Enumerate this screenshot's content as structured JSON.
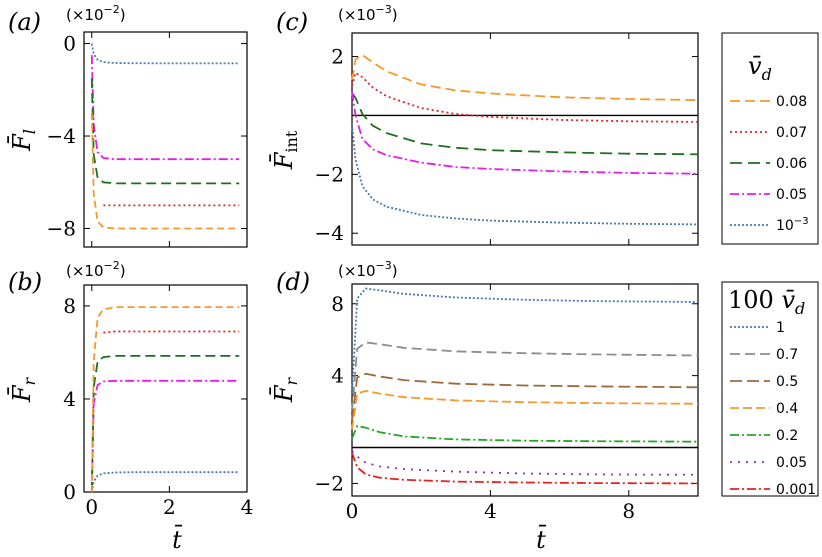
{
  "chart_data": [
    {
      "panel": "(a)",
      "type": "line",
      "ylabel": "F̄_l",
      "xlabel": "",
      "scale_note": "(×10",
      "scale_exp": "−2",
      "xlim": [
        -0.2,
        4
      ],
      "ylim": [
        -8.8,
        0.5
      ],
      "xticks": [
        0,
        2,
        4
      ],
      "xticklabels": [
        "",
        "",
        ""
      ],
      "yticks": [
        0,
        -4,
        -8
      ],
      "yticklabels": [
        "0",
        "−4",
        "−8"
      ],
      "series": [
        {
          "name": "10^-3",
          "color": "#4c78b5",
          "dash": "2,2",
          "x": [
            0.0,
            0.05,
            0.15,
            0.3,
            0.6,
            1.0,
            2.0,
            3.0,
            3.8
          ],
          "y": [
            0.0,
            -0.45,
            -0.7,
            -0.8,
            -0.84,
            -0.85,
            -0.86,
            -0.86,
            -0.86
          ]
        },
        {
          "name": "0.05",
          "color": "#e61aeb",
          "dash": "9,3,2,3",
          "x": [
            0.0,
            0.05,
            0.15,
            0.3,
            0.6,
            1.0,
            2.0,
            3.0,
            3.8
          ],
          "y": [
            -0.5,
            -3.5,
            -4.7,
            -4.95,
            -5.0,
            -5.0,
            -5.0,
            -5.0,
            -5.0
          ]
        },
        {
          "name": "0.06",
          "color": "#1e6e1e",
          "dash": "10,5",
          "x": [
            0.0,
            0.05,
            0.15,
            0.3,
            0.6,
            1.0,
            2.0,
            3.0,
            3.8
          ],
          "y": [
            -1.5,
            -4.8,
            -5.8,
            -6.0,
            -6.05,
            -6.05,
            -6.05,
            -6.05,
            -6.05
          ]
        },
        {
          "name": "0.07",
          "color": "#e8201f",
          "dash": "2,3",
          "x": [
            0.3,
            0.6,
            1.0,
            2.0,
            3.0,
            3.8
          ],
          "y": [
            -7.0,
            -7.0,
            -7.0,
            -7.0,
            -7.0,
            -7.0
          ]
        },
        {
          "name": "0.08",
          "color": "#f39a2e",
          "dash": "7,4",
          "x": [
            0.0,
            0.05,
            0.15,
            0.3,
            0.6,
            1.0,
            2.0,
            3.0,
            3.8
          ],
          "y": [
            -3.0,
            -6.5,
            -7.7,
            -7.95,
            -8.0,
            -8.0,
            -8.0,
            -8.0,
            -8.0
          ]
        }
      ]
    },
    {
      "panel": "(b)",
      "type": "line",
      "ylabel": "F̄_r",
      "xlabel": "t̄",
      "scale_note": "(×10",
      "scale_exp": "−2",
      "xlim": [
        -0.2,
        4
      ],
      "ylim": [
        0,
        8.9
      ],
      "xticks": [
        0,
        2,
        4
      ],
      "xticklabels": [
        "0",
        "2",
        "4"
      ],
      "yticks": [
        0,
        4,
        8
      ],
      "yticklabels": [
        "0",
        "4",
        "8"
      ],
      "series": [
        {
          "name": "10^-3",
          "color": "#4c78b5",
          "dash": "2,2",
          "x": [
            0.0,
            0.05,
            0.15,
            0.3,
            0.6,
            1.0,
            2.0,
            3.0,
            3.8
          ],
          "y": [
            0.0,
            0.45,
            0.7,
            0.8,
            0.84,
            0.85,
            0.85,
            0.85,
            0.85
          ]
        },
        {
          "name": "0.05",
          "color": "#e61aeb",
          "dash": "9,3,2,3",
          "x": [
            0.0,
            0.05,
            0.15,
            0.3,
            0.6,
            1.0,
            2.0,
            3.0,
            3.8
          ],
          "y": [
            0.0,
            3.8,
            4.6,
            4.75,
            4.78,
            4.78,
            4.78,
            4.78,
            4.78
          ]
        },
        {
          "name": "0.06",
          "color": "#1e6e1e",
          "dash": "10,5",
          "x": [
            0.0,
            0.05,
            0.15,
            0.3,
            0.6,
            1.0,
            2.0,
            3.0,
            3.8
          ],
          "y": [
            0.0,
            4.5,
            5.6,
            5.8,
            5.85,
            5.85,
            5.85,
            5.85,
            5.85
          ]
        },
        {
          "name": "0.07",
          "color": "#e8201f",
          "dash": "2,3",
          "x": [
            0.3,
            0.6,
            1.0,
            2.0,
            3.0,
            3.8
          ],
          "y": [
            6.85,
            6.9,
            6.9,
            6.9,
            6.9,
            6.9
          ]
        },
        {
          "name": "0.08",
          "color": "#f39a2e",
          "dash": "7,4",
          "x": [
            0.0,
            0.05,
            0.15,
            0.3,
            0.6,
            1.0,
            2.0,
            3.0,
            3.8
          ],
          "y": [
            0.0,
            5.6,
            7.5,
            7.85,
            7.95,
            7.95,
            7.95,
            7.95,
            7.95
          ]
        }
      ]
    },
    {
      "panel": "(c)",
      "type": "line",
      "ylabel": "F̄_int",
      "xlabel": "",
      "scale_note": "(×10",
      "scale_exp": "−3",
      "xlim": [
        0,
        10
      ],
      "ylim": [
        -4.4,
        2.8
      ],
      "xticks": [
        0,
        4,
        8
      ],
      "xticklabels": [
        "",
        "",
        ""
      ],
      "yticks": [
        2,
        -2,
        -4
      ],
      "yticklabels": [
        "2",
        "−2",
        "−4"
      ],
      "zero_line": true,
      "legend_title": "v̄_d",
      "series": [
        {
          "name": "0.08",
          "color": "#f39a2e",
          "dash": "10,5",
          "x": [
            0.0,
            0.1,
            0.3,
            0.6,
            1.0,
            2.0,
            3.0,
            4.0,
            6.0,
            8.0,
            10.0
          ],
          "y": [
            1.2,
            1.9,
            2.05,
            1.8,
            1.5,
            1.05,
            0.85,
            0.75,
            0.62,
            0.56,
            0.52
          ]
        },
        {
          "name": "0.07",
          "color": "#e8201f",
          "dash": "2,3",
          "x": [
            0.0,
            0.1,
            0.3,
            0.6,
            1.0,
            2.0,
            3.0,
            4.0,
            6.0,
            8.0,
            10.0
          ],
          "y": [
            1.0,
            1.45,
            1.3,
            0.95,
            0.65,
            0.25,
            0.05,
            -0.05,
            -0.15,
            -0.2,
            -0.22
          ]
        },
        {
          "name": "0.06",
          "color": "#1e6e1e",
          "dash": "12,6",
          "x": [
            0.0,
            0.1,
            0.3,
            0.6,
            1.0,
            2.0,
            3.0,
            4.0,
            6.0,
            8.0,
            10.0
          ],
          "y": [
            0.75,
            0.6,
            0.05,
            -0.35,
            -0.6,
            -0.95,
            -1.1,
            -1.18,
            -1.25,
            -1.3,
            -1.32
          ]
        },
        {
          "name": "0.05",
          "color": "#e61aeb",
          "dash": "9,3,2,3",
          "x": [
            0.0,
            0.1,
            0.3,
            0.6,
            1.0,
            2.0,
            3.0,
            4.0,
            6.0,
            8.0,
            10.0
          ],
          "y": [
            0.8,
            0.0,
            -0.8,
            -1.15,
            -1.35,
            -1.6,
            -1.75,
            -1.82,
            -1.9,
            -1.95,
            -1.98
          ]
        },
        {
          "name": "10^-3",
          "color": "#4c78b5",
          "dash": "2,2",
          "x": [
            0.0,
            0.1,
            0.3,
            0.6,
            1.0,
            2.0,
            3.0,
            4.0,
            6.0,
            8.0,
            10.0
          ],
          "y": [
            -0.3,
            -1.5,
            -2.4,
            -2.85,
            -3.1,
            -3.38,
            -3.5,
            -3.57,
            -3.64,
            -3.68,
            -3.7
          ]
        }
      ]
    },
    {
      "panel": "(d)",
      "type": "line",
      "ylabel": "F̄_r",
      "xlabel": "t̄",
      "scale_note": "(×10",
      "scale_exp": "−3",
      "xlim": [
        0,
        10
      ],
      "ylim": [
        -2.7,
        9.1
      ],
      "xticks": [
        0,
        4,
        8
      ],
      "xticklabels": [
        "0",
        "4",
        "8"
      ],
      "yticks": [
        8,
        4,
        -2
      ],
      "yticklabels": [
        "8",
        "4",
        "−2"
      ],
      "zero_line": true,
      "legend_title": "100 v̄_d",
      "series": [
        {
          "name": "1",
          "color": "#4c78b5",
          "dash": "2,2",
          "x": [
            0.0,
            0.15,
            0.4,
            0.8,
            1.5,
            3.0,
            5.0,
            7.0,
            10.0
          ],
          "y": [
            3.0,
            8.3,
            8.85,
            8.75,
            8.55,
            8.35,
            8.22,
            8.15,
            8.1
          ]
        },
        {
          "name": "0.7",
          "color": "#8c8c8c",
          "dash": "10,5",
          "x": [
            0.0,
            0.15,
            0.4,
            0.8,
            1.5,
            3.0,
            5.0,
            7.0,
            10.0
          ],
          "y": [
            2.0,
            5.5,
            5.85,
            5.75,
            5.55,
            5.35,
            5.25,
            5.18,
            5.12
          ]
        },
        {
          "name": "0.5",
          "color": "#9b6a3c",
          "dash": "12,5",
          "x": [
            0.0,
            0.15,
            0.4,
            0.8,
            1.5,
            3.0,
            5.0,
            7.0,
            10.0
          ],
          "y": [
            1.5,
            3.9,
            4.1,
            3.95,
            3.75,
            3.55,
            3.45,
            3.4,
            3.35
          ]
        },
        {
          "name": "0.4",
          "color": "#f39a2e",
          "dash": "9,4",
          "x": [
            0.0,
            0.15,
            0.4,
            0.8,
            1.5,
            3.0,
            5.0,
            7.0,
            10.0
          ],
          "y": [
            1.0,
            3.0,
            3.15,
            3.0,
            2.8,
            2.62,
            2.52,
            2.47,
            2.43
          ]
        },
        {
          "name": "0.2",
          "color": "#22a522",
          "dash": "9,3,2,3",
          "x": [
            0.0,
            0.15,
            0.4,
            0.8,
            1.5,
            3.0,
            5.0,
            7.0,
            10.0
          ],
          "y": [
            0.5,
            1.2,
            1.1,
            0.85,
            0.62,
            0.45,
            0.38,
            0.35,
            0.32
          ]
        },
        {
          "name": "0.05",
          "color": "#8f2bb0",
          "dash": "2,6",
          "x": [
            0.0,
            0.15,
            0.4,
            0.8,
            1.5,
            3.0,
            5.0,
            7.0,
            10.0
          ],
          "y": [
            -0.2,
            -0.5,
            -0.85,
            -1.05,
            -1.2,
            -1.35,
            -1.45,
            -1.5,
            -1.52
          ]
        },
        {
          "name": "0.001",
          "color": "#e8201f",
          "dash": "9,3,2,3",
          "x": [
            0.0,
            0.15,
            0.4,
            0.8,
            1.5,
            3.0,
            5.0,
            7.0,
            10.0
          ],
          "y": [
            -0.3,
            -1.1,
            -1.5,
            -1.68,
            -1.8,
            -1.9,
            -1.95,
            -1.98,
            -2.0
          ]
        }
      ]
    }
  ],
  "legends": {
    "top_title": "v̄_d",
    "top_items": [
      "0.08",
      "0.07",
      "0.06",
      "0.05",
      "10"
    ],
    "top_last_exp": "−3",
    "bottom_title": "100 v̄_d",
    "bottom_items": [
      "1",
      "0.7",
      "0.5",
      "0.4",
      "0.2",
      "0.05",
      "0.001"
    ]
  },
  "colors": {
    "orange": "#f39a2e",
    "red": "#e8201f",
    "dark_green": "#1e6e1e",
    "magenta": "#e61aeb",
    "blue": "#4c78b5",
    "gray": "#8c8c8c",
    "brown": "#9b6a3c",
    "green": "#22a522",
    "purple": "#8f2bb0"
  }
}
